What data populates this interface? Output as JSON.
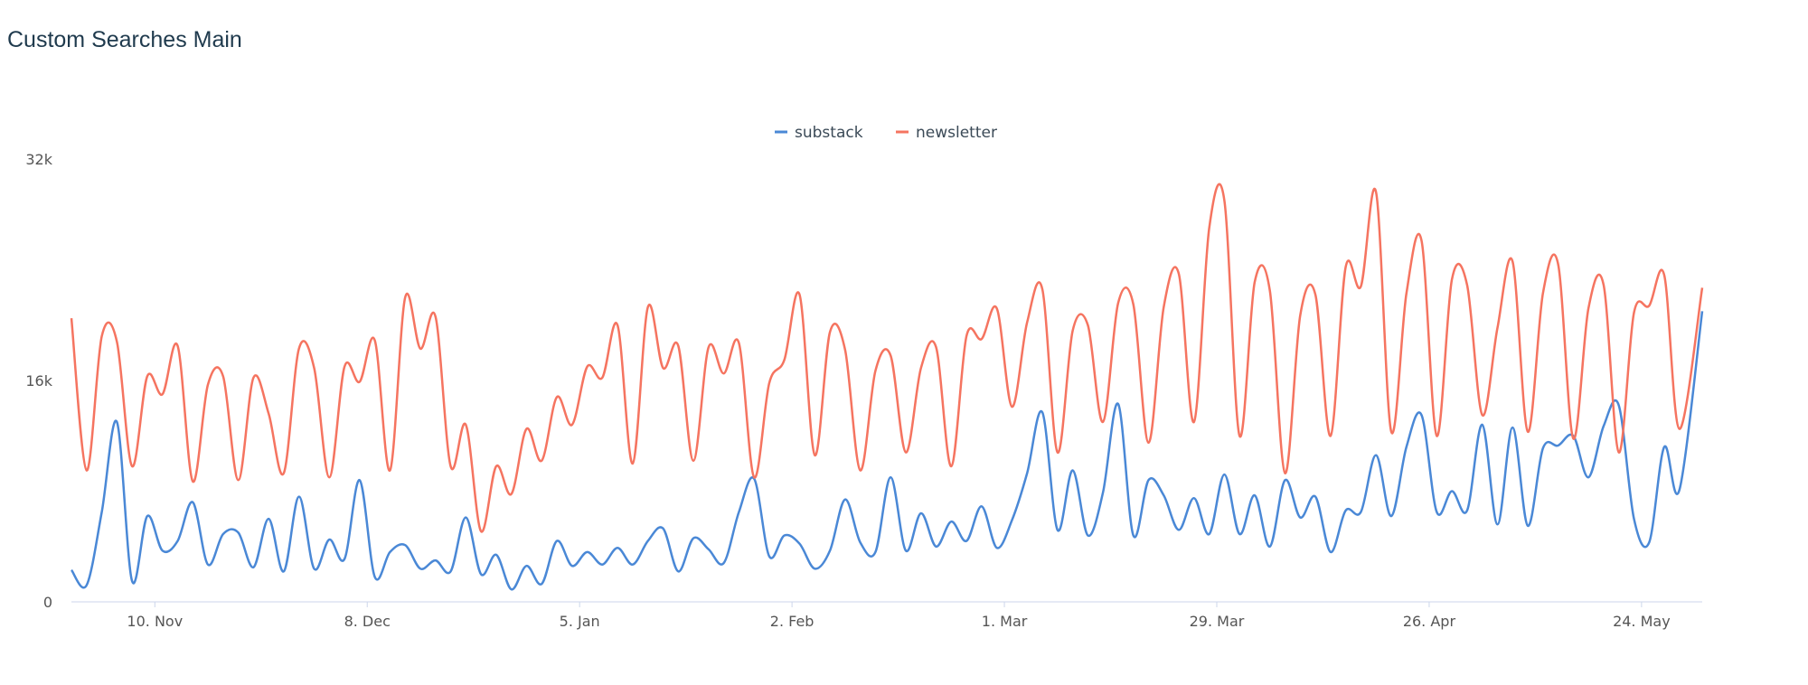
{
  "title": "Custom Searches Main",
  "chart_data": {
    "type": "line",
    "title": "Custom Searches Main",
    "xlabel": "",
    "ylabel": "",
    "x_ticks": [
      "10. Nov",
      "8. Dec",
      "5. Jan",
      "2. Feb",
      "1. Mar",
      "29. Mar",
      "26. Apr",
      "24. May"
    ],
    "y_ticks": [
      "0",
      "16k",
      "32k"
    ],
    "ylim": [
      0,
      32000
    ],
    "x_start": "2019-10-30",
    "x_end": "2020-06-01",
    "grid": false,
    "legend_position": "top-center",
    "series": [
      {
        "name": "substack",
        "color": "#4a88d6",
        "dates": [
          "2019-10-30",
          "2019-11-01",
          "2019-11-03",
          "2019-11-05",
          "2019-11-07",
          "2019-11-09",
          "2019-11-11",
          "2019-11-13",
          "2019-11-15",
          "2019-11-17",
          "2019-11-19",
          "2019-11-21",
          "2019-11-23",
          "2019-11-25",
          "2019-11-27",
          "2019-11-29",
          "2019-12-01",
          "2019-12-03",
          "2019-12-05",
          "2019-12-07",
          "2019-12-09",
          "2019-12-11",
          "2019-12-13",
          "2019-12-15",
          "2019-12-17",
          "2019-12-19",
          "2019-12-21",
          "2019-12-23",
          "2019-12-25",
          "2019-12-27",
          "2019-12-29",
          "2019-12-31",
          "2020-01-02",
          "2020-01-04",
          "2020-01-06",
          "2020-01-08",
          "2020-01-10",
          "2020-01-12",
          "2020-01-14",
          "2020-01-16",
          "2020-01-18",
          "2020-01-20",
          "2020-01-22",
          "2020-01-24",
          "2020-01-26",
          "2020-01-28",
          "2020-01-30",
          "2020-02-01",
          "2020-02-03",
          "2020-02-05",
          "2020-02-07",
          "2020-02-09",
          "2020-02-11",
          "2020-02-13",
          "2020-02-15",
          "2020-02-17",
          "2020-02-19",
          "2020-02-21",
          "2020-02-23",
          "2020-02-25",
          "2020-02-27",
          "2020-02-29",
          "2020-03-02",
          "2020-03-04",
          "2020-03-06",
          "2020-03-08",
          "2020-03-10",
          "2020-03-12",
          "2020-03-14",
          "2020-03-16",
          "2020-03-18",
          "2020-03-20",
          "2020-03-22",
          "2020-03-24",
          "2020-03-26",
          "2020-03-28",
          "2020-03-30",
          "2020-04-01",
          "2020-04-03",
          "2020-04-05",
          "2020-04-07",
          "2020-04-09",
          "2020-04-11",
          "2020-04-13",
          "2020-04-15",
          "2020-04-17",
          "2020-04-19",
          "2020-04-21",
          "2020-04-23",
          "2020-04-25",
          "2020-04-27",
          "2020-04-29",
          "2020-05-01",
          "2020-05-03",
          "2020-05-05",
          "2020-05-07",
          "2020-05-09",
          "2020-05-11",
          "2020-05-13",
          "2020-05-15",
          "2020-05-17",
          "2020-05-19",
          "2020-05-21",
          "2020-05-23",
          "2020-05-25",
          "2020-05-27",
          "2020-05-29",
          "2020-06-01"
        ],
        "values": [
          2300,
          1200,
          6500,
          13000,
          1500,
          6200,
          3700,
          4400,
          7200,
          2700,
          4900,
          5000,
          2500,
          6000,
          2200,
          7600,
          2400,
          4500,
          3100,
          8800,
          1800,
          3600,
          4100,
          2400,
          3000,
          2200,
          6100,
          2000,
          3400,
          900,
          2600,
          1300,
          4400,
          2600,
          3600,
          2700,
          3900,
          2700,
          4400,
          5300,
          2200,
          4600,
          3800,
          2800,
          6500,
          8900,
          3300,
          4800,
          4200,
          2400,
          3700,
          7400,
          4300,
          3600,
          9000,
          3700,
          6400,
          4000,
          5800,
          4400,
          6900,
          3900,
          5900,
          9300,
          13700,
          5200,
          9500,
          4800,
          7900,
          14300,
          4800,
          8800,
          7700,
          5200,
          7500,
          4900,
          9200,
          4900,
          7700,
          4000,
          8800,
          6100,
          7600,
          3600,
          6600,
          6500,
          10600,
          6200,
          11200,
          13500,
          6500,
          8000,
          6600,
          12800,
          5600,
          12600,
          5500,
          11100,
          11300,
          12000,
          9000,
          12700,
          14200,
          6000,
          4300,
          11200,
          8100,
          21000
        ]
      },
      {
        "name": "newsletter",
        "color": "#f57460",
        "dates": [
          "2019-10-30",
          "2019-11-01",
          "2019-11-03",
          "2019-11-05",
          "2019-11-07",
          "2019-11-09",
          "2019-11-11",
          "2019-11-13",
          "2019-11-15",
          "2019-11-17",
          "2019-11-19",
          "2019-11-21",
          "2019-11-23",
          "2019-11-25",
          "2019-11-27",
          "2019-11-29",
          "2019-12-01",
          "2019-12-03",
          "2019-12-05",
          "2019-12-07",
          "2019-12-09",
          "2019-12-11",
          "2019-12-13",
          "2019-12-15",
          "2019-12-17",
          "2019-12-19",
          "2019-12-21",
          "2019-12-23",
          "2019-12-25",
          "2019-12-27",
          "2019-12-29",
          "2019-12-31",
          "2020-01-02",
          "2020-01-04",
          "2020-01-06",
          "2020-01-08",
          "2020-01-10",
          "2020-01-12",
          "2020-01-14",
          "2020-01-16",
          "2020-01-18",
          "2020-01-20",
          "2020-01-22",
          "2020-01-24",
          "2020-01-26",
          "2020-01-28",
          "2020-01-30",
          "2020-02-01",
          "2020-02-03",
          "2020-02-05",
          "2020-02-07",
          "2020-02-09",
          "2020-02-11",
          "2020-02-13",
          "2020-02-15",
          "2020-02-17",
          "2020-02-19",
          "2020-02-21",
          "2020-02-23",
          "2020-02-25",
          "2020-02-27",
          "2020-02-29",
          "2020-03-02",
          "2020-03-04",
          "2020-03-06",
          "2020-03-08",
          "2020-03-10",
          "2020-03-12",
          "2020-03-14",
          "2020-03-16",
          "2020-03-18",
          "2020-03-20",
          "2020-03-22",
          "2020-03-24",
          "2020-03-26",
          "2020-03-28",
          "2020-03-30",
          "2020-04-01",
          "2020-04-03",
          "2020-04-05",
          "2020-04-07",
          "2020-04-09",
          "2020-04-11",
          "2020-04-13",
          "2020-04-15",
          "2020-04-17",
          "2020-04-19",
          "2020-04-21",
          "2020-04-23",
          "2020-04-25",
          "2020-04-27",
          "2020-04-29",
          "2020-05-01",
          "2020-05-03",
          "2020-05-05",
          "2020-05-07",
          "2020-05-09",
          "2020-05-11",
          "2020-05-13",
          "2020-05-15",
          "2020-05-17",
          "2020-05-19",
          "2020-05-21",
          "2020-05-23",
          "2020-05-25",
          "2020-05-27",
          "2020-05-29",
          "2020-06-01"
        ],
        "values": [
          20500,
          9500,
          19200,
          18800,
          9800,
          16300,
          15000,
          18500,
          8700,
          15700,
          16300,
          8800,
          16200,
          13600,
          9300,
          18300,
          16900,
          9000,
          17000,
          15900,
          18900,
          9500,
          22000,
          18300,
          20600,
          9800,
          12800,
          5100,
          9800,
          7800,
          12500,
          10200,
          14800,
          12800,
          17000,
          16200,
          20000,
          10000,
          21300,
          16900,
          18500,
          10200,
          18400,
          16500,
          18700,
          9000,
          15800,
          17500,
          22200,
          10600,
          19500,
          18200,
          9500,
          16700,
          17800,
          10800,
          16900,
          18400,
          9800,
          19200,
          19000,
          21200,
          14100,
          20200,
          22600,
          10800,
          19600,
          20000,
          13000,
          21600,
          21500,
          11500,
          21300,
          23700,
          13000,
          27000,
          29000,
          12000,
          23100,
          22500,
          9300,
          20700,
          22200,
          12000,
          24200,
          22800,
          29600,
          12300,
          22300,
          26100,
          12000,
          23300,
          22900,
          13500,
          19800,
          24600,
          12300,
          22300,
          24400,
          11800,
          21200,
          22900,
          10800,
          20900,
          21400,
          23600,
          12500,
          22700
        ]
      }
    ]
  }
}
